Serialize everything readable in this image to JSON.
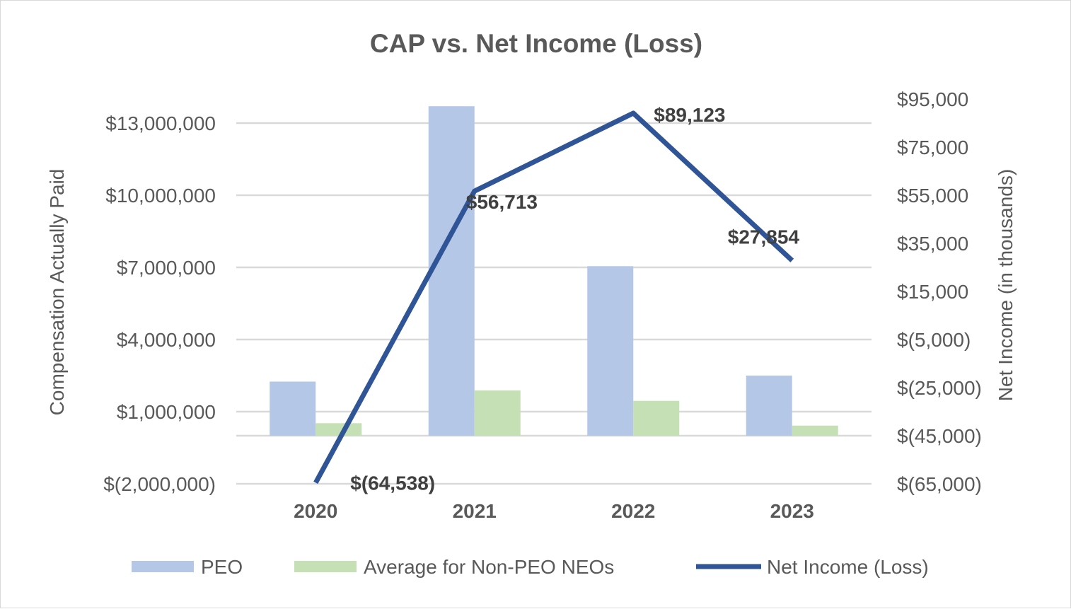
{
  "chart_data": {
    "type": "bar",
    "title": "CAP vs. Net Income (Loss)",
    "categories": [
      "2020",
      "2021",
      "2022",
      "2023"
    ],
    "ylabel": "Compensation Actually Paid",
    "y2label": "Net Income (in thousands)",
    "ylim": [
      -2000000,
      13500000
    ],
    "yticks": [
      -2000000,
      1000000,
      4000000,
      7000000,
      10000000,
      13000000
    ],
    "ytick_labels": [
      "$(2,000,000)",
      "$1,000,000",
      "$4,000,000",
      "$7,000,000",
      "$10,000,000",
      "$13,000,000"
    ],
    "y2lim": [
      -65000,
      95000
    ],
    "y2ticks": [
      -65000,
      -45000,
      -25000,
      -5000,
      15000,
      35000,
      55000,
      75000,
      95000
    ],
    "y2tick_labels": [
      "$(65,000)",
      "$(45,000)",
      "$(25,000)",
      "$(5,000)",
      "$15,000",
      "$35,000",
      "$55,000",
      "$75,000",
      "$95,000"
    ],
    "series": [
      {
        "name": "PEO",
        "type": "bar",
        "axis": "left",
        "color": "#b4c7e7",
        "values": [
          2250000,
          13700000,
          7050000,
          2500000
        ]
      },
      {
        "name": "Average for Non-PEO NEOs",
        "type": "bar",
        "axis": "left",
        "color": "#c5e0b4",
        "values": [
          520000,
          1880000,
          1450000,
          420000
        ]
      },
      {
        "name": "Net Income (Loss)",
        "type": "line",
        "axis": "right",
        "color": "#2f5597",
        "values": [
          -64538,
          56713,
          89123,
          27854
        ],
        "data_labels": [
          "$(64,538)",
          "$56,713",
          "$89,123",
          "$27,854"
        ]
      }
    ],
    "grid": true,
    "legend": "bottom"
  }
}
